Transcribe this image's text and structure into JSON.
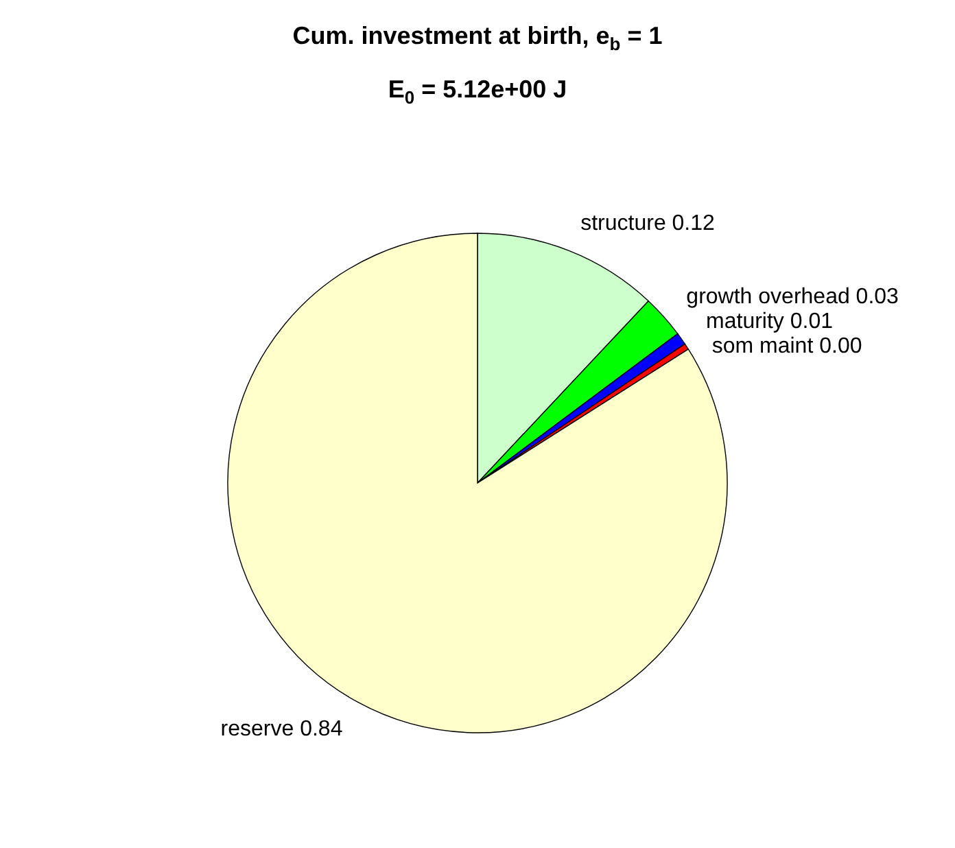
{
  "chart_data": {
    "type": "pie",
    "title": "Cum. investment at birth, e$_{b}$ = 1",
    "subtitle": "E$_{0}$ = 5.12e+00 J",
    "categories": [
      "structure",
      "growth overhead",
      "maturity",
      "som maint",
      "reserve"
    ],
    "values": [
      0.12,
      0.028,
      0.008,
      0.004,
      0.84
    ],
    "value_labels": [
      "0.12",
      "0.03",
      "0.01",
      "0.00",
      "0.84"
    ],
    "colors": [
      "#ccffcc",
      "#00ff00",
      "#0000ff",
      "#ff0000",
      "#ffffcc"
    ]
  }
}
